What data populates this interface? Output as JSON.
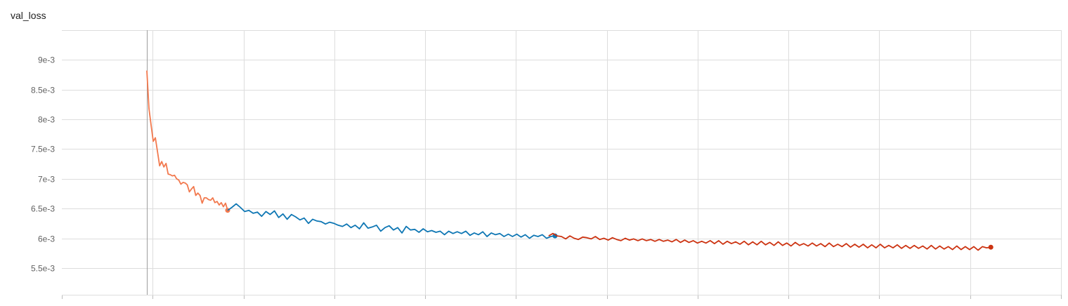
{
  "chart_data": {
    "type": "line",
    "title": "val_loss",
    "xlabel": "",
    "ylabel": "",
    "ylim": [
      0.00505,
      0.0095
    ],
    "yticks": [
      {
        "value": 0.0055,
        "label": "5.5e-3"
      },
      {
        "value": 0.006,
        "label": "6e-3"
      },
      {
        "value": 0.0065,
        "label": "6.5e-3"
      },
      {
        "value": 0.007,
        "label": "7e-3"
      },
      {
        "value": 0.0075,
        "label": "7.5e-3"
      },
      {
        "value": 0.008,
        "label": "8e-3"
      },
      {
        "value": 0.0085,
        "label": "8.5e-3"
      },
      {
        "value": 0.009,
        "label": "9e-3"
      }
    ],
    "series": [
      {
        "color": "#f2794e",
        "x": [
          0,
          1,
          2,
          3,
          4,
          5,
          6,
          7,
          8,
          9,
          10,
          11,
          12,
          13,
          14,
          15,
          16,
          17,
          18,
          19,
          20,
          21,
          22,
          23,
          24,
          25,
          26,
          27,
          28,
          29,
          30,
          31,
          32,
          33,
          34,
          35,
          36,
          37,
          38
        ],
        "values": [
          0.00882,
          0.00818,
          0.0079,
          0.00763,
          0.00769,
          0.00746,
          0.00722,
          0.00729,
          0.0072,
          0.00726,
          0.00708,
          0.00707,
          0.00705,
          0.00706,
          0.007,
          0.00698,
          0.00691,
          0.00694,
          0.00693,
          0.0069,
          0.00678,
          0.00683,
          0.00687,
          0.00672,
          0.00676,
          0.00672,
          0.00659,
          0.00668,
          0.00668,
          0.00665,
          0.00664,
          0.00668,
          0.0066,
          0.00662,
          0.00656,
          0.0066,
          0.00653,
          0.00659,
          0.00647
        ]
      },
      {
        "color": "#0f77b4",
        "x": [
          38,
          40,
          42,
          44,
          46,
          48,
          50,
          52,
          54,
          56,
          58,
          60,
          62,
          64,
          66,
          68,
          70,
          72,
          74,
          76,
          78,
          80,
          82,
          84,
          86,
          88,
          90,
          92,
          94,
          96,
          98,
          100,
          102,
          104,
          106,
          108,
          110,
          112,
          114,
          116,
          118,
          120,
          122,
          124,
          126,
          128,
          130,
          132,
          134,
          136,
          138,
          140,
          142,
          144,
          146,
          148,
          150,
          152,
          154,
          156,
          158,
          160,
          162,
          164,
          166,
          168,
          170,
          172,
          174,
          176,
          178,
          180,
          182,
          184,
          186,
          188,
          190,
          192
        ],
        "values": [
          0.00647,
          0.00652,
          0.00658,
          0.00652,
          0.00645,
          0.00647,
          0.00642,
          0.00644,
          0.00637,
          0.00645,
          0.0064,
          0.00646,
          0.00635,
          0.00641,
          0.00632,
          0.0064,
          0.00636,
          0.00631,
          0.00634,
          0.00625,
          0.00632,
          0.00629,
          0.00628,
          0.00624,
          0.00627,
          0.00625,
          0.00622,
          0.0062,
          0.00624,
          0.00618,
          0.00622,
          0.00616,
          0.00626,
          0.00617,
          0.00619,
          0.00622,
          0.00612,
          0.00618,
          0.00621,
          0.00614,
          0.00618,
          0.00609,
          0.0062,
          0.00614,
          0.00615,
          0.0061,
          0.00616,
          0.00611,
          0.00613,
          0.0061,
          0.00612,
          0.00606,
          0.00612,
          0.00608,
          0.00611,
          0.00608,
          0.00612,
          0.00605,
          0.00609,
          0.00606,
          0.00611,
          0.00603,
          0.00609,
          0.00606,
          0.00608,
          0.00603,
          0.00607,
          0.00603,
          0.00607,
          0.00602,
          0.00606,
          0.006,
          0.00605,
          0.00603,
          0.00606,
          0.006,
          0.00603,
          0.00604
        ]
      },
      {
        "color": "#cc3311",
        "x": [
          189,
          191,
          193,
          195,
          197,
          199,
          201,
          203,
          205,
          207,
          209,
          211,
          213,
          215,
          217,
          219,
          221,
          223,
          225,
          227,
          229,
          231,
          233,
          235,
          237,
          239,
          241,
          243,
          245,
          247,
          249,
          251,
          253,
          255,
          257,
          259,
          261,
          263,
          265,
          267,
          269,
          271,
          273,
          275,
          277,
          279,
          281,
          283,
          285,
          287,
          289,
          291,
          293,
          295,
          297,
          299,
          301,
          303,
          305,
          307,
          309,
          311,
          313,
          315,
          317,
          319,
          321,
          323,
          325,
          327,
          329,
          331,
          333,
          335,
          337,
          339,
          341,
          343,
          345,
          347,
          349,
          351,
          353,
          355,
          357,
          359,
          361,
          363,
          365,
          367,
          369,
          371,
          373,
          375,
          377,
          379,
          381,
          383,
          385,
          387,
          389,
          391,
          393,
          395,
          397
        ],
        "values": [
          0.00604,
          0.00608,
          0.00604,
          0.00603,
          0.00599,
          0.00604,
          0.006,
          0.00598,
          0.00602,
          0.00601,
          0.00599,
          0.00603,
          0.00598,
          0.006,
          0.00597,
          0.00601,
          0.00598,
          0.00596,
          0.006,
          0.00597,
          0.00599,
          0.00596,
          0.00599,
          0.00596,
          0.00598,
          0.00595,
          0.00598,
          0.00595,
          0.00597,
          0.00594,
          0.00598,
          0.00593,
          0.00597,
          0.00593,
          0.00596,
          0.00592,
          0.00595,
          0.00592,
          0.00596,
          0.00591,
          0.00596,
          0.0059,
          0.00595,
          0.00591,
          0.00594,
          0.0059,
          0.00595,
          0.00589,
          0.00594,
          0.00589,
          0.00595,
          0.00589,
          0.00593,
          0.00588,
          0.00594,
          0.00588,
          0.00592,
          0.00587,
          0.00593,
          0.00588,
          0.00591,
          0.00587,
          0.00592,
          0.00587,
          0.00591,
          0.00586,
          0.00592,
          0.00586,
          0.0059,
          0.00586,
          0.00591,
          0.00585,
          0.0059,
          0.00585,
          0.0059,
          0.00584,
          0.00589,
          0.00584,
          0.0059,
          0.00584,
          0.00588,
          0.00584,
          0.00589,
          0.00583,
          0.00588,
          0.00583,
          0.00588,
          0.00583,
          0.00587,
          0.00582,
          0.00588,
          0.00582,
          0.00587,
          0.00582,
          0.00586,
          0.00581,
          0.00587,
          0.00581,
          0.00586,
          0.00581,
          0.00586,
          0.0058,
          0.00586,
          0.00584,
          0.00585
        ]
      }
    ],
    "xlim": [
      -40,
      430
    ],
    "grid": true,
    "legend": "none"
  }
}
